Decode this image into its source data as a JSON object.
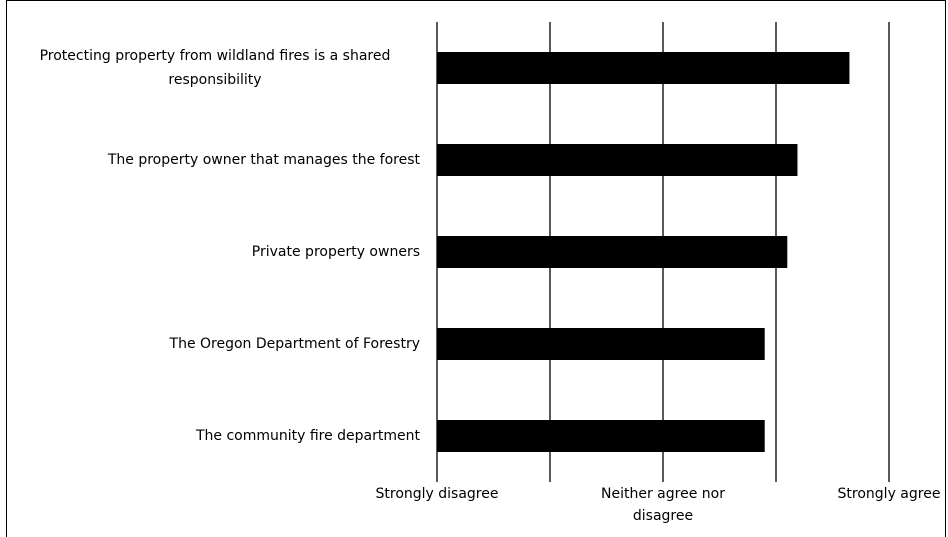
{
  "chart_data": {
    "type": "barh",
    "categories": [
      "Protecting property from wildland fires is a shared responsibility",
      "The property owner that manages the forest",
      "Private property owners",
      "The Oregon Department of Forestry",
      "The community fire department"
    ],
    "values": [
      4.65,
      4.19,
      4.1,
      3.9,
      3.9
    ],
    "color": "#000000",
    "xlim": [
      1,
      5
    ],
    "xticks": [
      {
        "value": 1,
        "label": "Strongly disagree"
      },
      {
        "value": 2,
        "label": null
      },
      {
        "value": 3,
        "label": "Neither agree nor disagree"
      },
      {
        "value": 4,
        "label": null
      },
      {
        "value": 5,
        "label": "Strongly agree"
      }
    ],
    "grid": true
  }
}
